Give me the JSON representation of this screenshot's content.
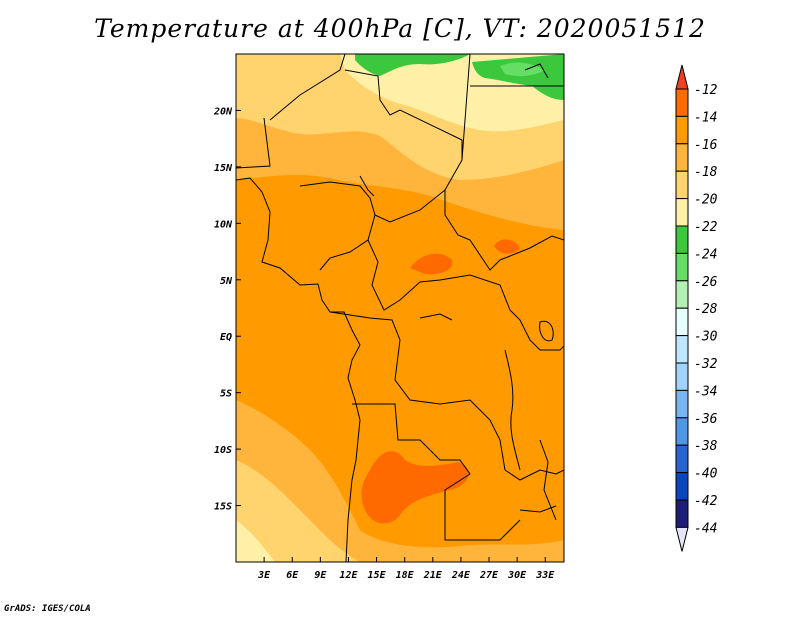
{
  "title": "Temperature at 400hPa [C], VT: 2020051512",
  "credit": "GrADS: IGES/COLA",
  "map": {
    "lon_range": [
      0,
      35
    ],
    "lat_range": [
      -20,
      25
    ],
    "lon_ticks": [
      {
        "value": 3,
        "label": "3E"
      },
      {
        "value": 6,
        "label": "6E"
      },
      {
        "value": 9,
        "label": "9E"
      },
      {
        "value": 12,
        "label": "12E"
      },
      {
        "value": 15,
        "label": "15E"
      },
      {
        "value": 18,
        "label": "18E"
      },
      {
        "value": 21,
        "label": "21E"
      },
      {
        "value": 24,
        "label": "24E"
      },
      {
        "value": 27,
        "label": "27E"
      },
      {
        "value": 30,
        "label": "30E"
      },
      {
        "value": 33,
        "label": "33E"
      }
    ],
    "lat_ticks": [
      {
        "value": 20,
        "label": "20N"
      },
      {
        "value": 15,
        "label": "15N"
      },
      {
        "value": 10,
        "label": "10N"
      },
      {
        "value": 5,
        "label": "5N"
      },
      {
        "value": 0,
        "label": "EQ"
      },
      {
        "value": -5,
        "label": "5S"
      },
      {
        "value": -10,
        "label": "10S"
      },
      {
        "value": -15,
        "label": "15S"
      }
    ]
  },
  "colorbar": {
    "labels": [
      "-12",
      "-14",
      "-16",
      "-18",
      "-20",
      "-22",
      "-24",
      "-26",
      "-28",
      "-30",
      "-32",
      "-34",
      "-36",
      "-38",
      "-40",
      "-42",
      "-44"
    ],
    "colors": [
      "#f04020",
      "#ff6a00",
      "#ff9b00",
      "#ffb53c",
      "#ffd36e",
      "#fff0a8",
      "#3cc83c",
      "#64de64",
      "#b4f0b4",
      "#e6ffff",
      "#c0e6ff",
      "#a0d2fa",
      "#78b4f0",
      "#5096e6",
      "#2864d2",
      "#0a46be",
      "#1e1e78",
      "#e6e6fa"
    ]
  }
}
